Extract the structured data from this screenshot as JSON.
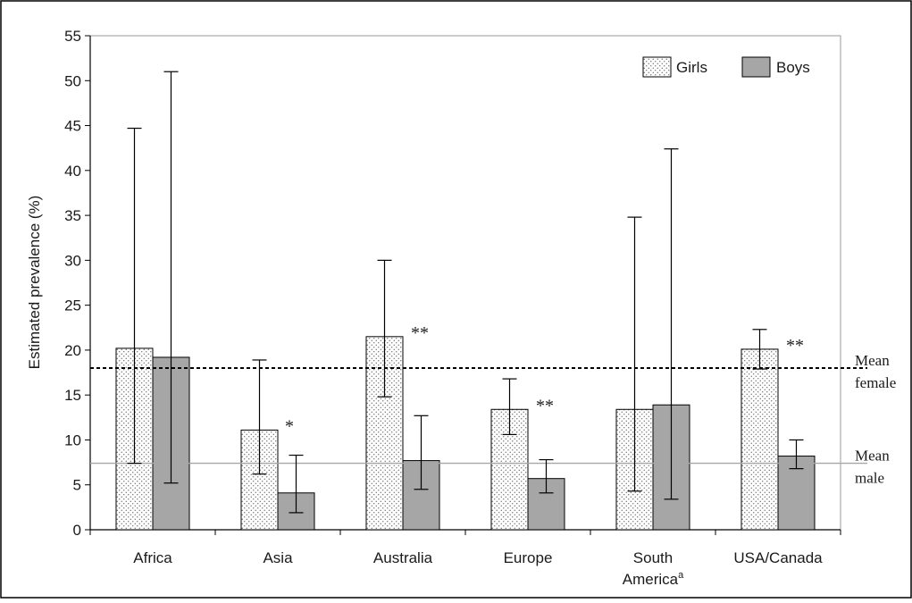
{
  "chart_data": {
    "type": "bar",
    "title": "",
    "xlabel": "",
    "ylabel": "Estimated prevalence (%)",
    "ylim": [
      0,
      55
    ],
    "yticks": [
      "0",
      "5",
      "10",
      "15",
      "20",
      "25",
      "30",
      "35",
      "40",
      "45",
      "50",
      "55"
    ],
    "categories": [
      "Africa",
      "Asia",
      "Australia",
      "Europe",
      "South America",
      "USA/Canada"
    ],
    "category_footnote": {
      "South America": "a"
    },
    "series": [
      {
        "name": "Girls",
        "pattern": "dotted",
        "values": [
          20.2,
          11.1,
          21.5,
          13.4,
          13.4,
          20.1
        ],
        "err_low": [
          7.4,
          6.2,
          14.8,
          10.6,
          4.3,
          17.9
        ],
        "err_high": [
          44.7,
          18.9,
          30.0,
          16.8,
          34.8,
          22.3
        ]
      },
      {
        "name": "Boys",
        "color": "#a6a6a6",
        "values": [
          19.2,
          4.1,
          7.7,
          5.7,
          13.9,
          8.2
        ],
        "err_low": [
          5.2,
          1.9,
          4.5,
          4.1,
          3.4,
          6.8
        ],
        "err_high": [
          51.0,
          8.3,
          12.7,
          7.8,
          42.4,
          10.0
        ]
      }
    ],
    "significance": [
      "",
      "*",
      "**",
      "**",
      "",
      "**"
    ],
    "reference_lines": [
      {
        "label_lines": [
          "Mean",
          "female"
        ],
        "value": 18.0,
        "style": "dotted"
      },
      {
        "label_lines": [
          "Mean",
          "male"
        ],
        "value": 7.4,
        "style": "solid",
        "color": "#a6a6a6"
      }
    ],
    "legend": "top-right",
    "grid": false
  }
}
